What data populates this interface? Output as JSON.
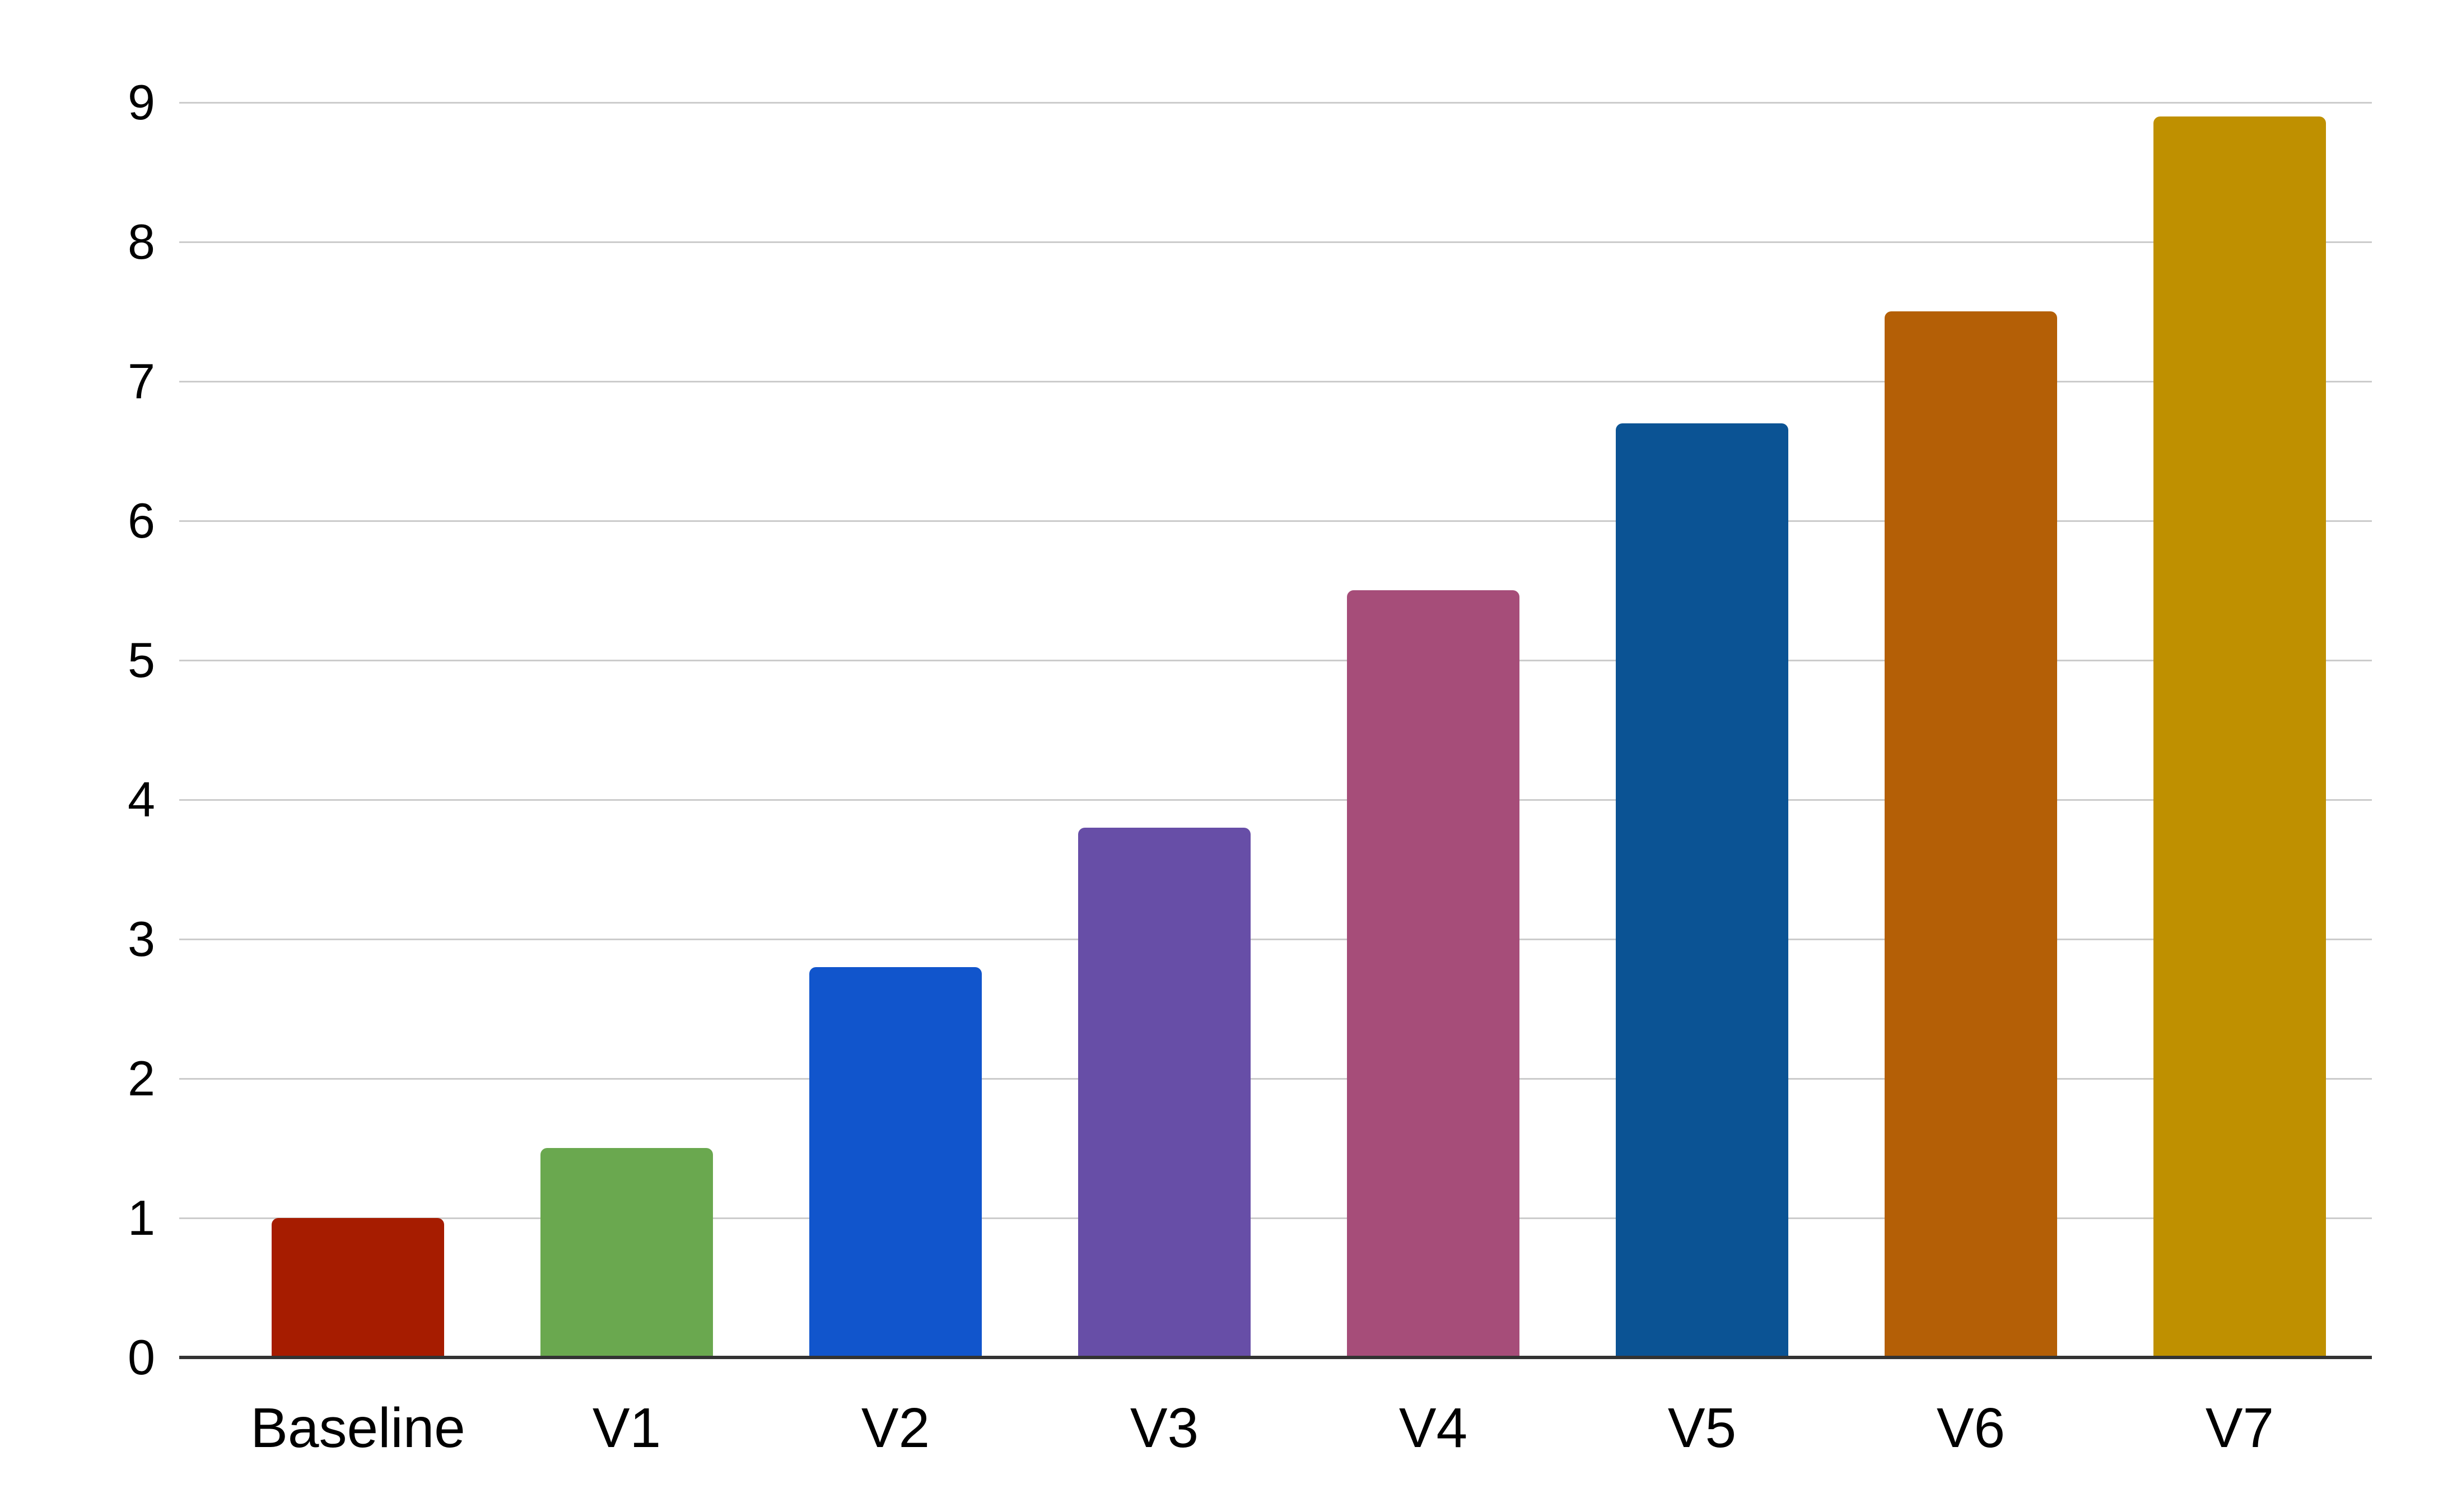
{
  "chart_data": {
    "type": "bar",
    "title": "",
    "xlabel": "",
    "ylabel": "",
    "categories": [
      "Baseline",
      "V1",
      "V2",
      "V3",
      "V4",
      "V5",
      "V6",
      "V7"
    ],
    "values": [
      1,
      1.5,
      2.8,
      3.8,
      5.5,
      6.7,
      7.5,
      8.9
    ],
    "bar_colors": [
      "#a61c00",
      "#6aa84f",
      "#1155cc",
      "#674ea7",
      "#a64d79",
      "#0b5394",
      "#b45f06",
      "#bf9000"
    ],
    "ylim": [
      0,
      9
    ],
    "y_ticks": [
      "0",
      "1",
      "2",
      "3",
      "4",
      "5",
      "6",
      "7",
      "8",
      "9"
    ],
    "grid": "horizontal",
    "legend_position": "none",
    "colors": {
      "background": "#ffffff",
      "gridline": "#cccccc",
      "axis_line": "#333333",
      "tick_label": "#000000",
      "category_label": "#000000"
    }
  }
}
